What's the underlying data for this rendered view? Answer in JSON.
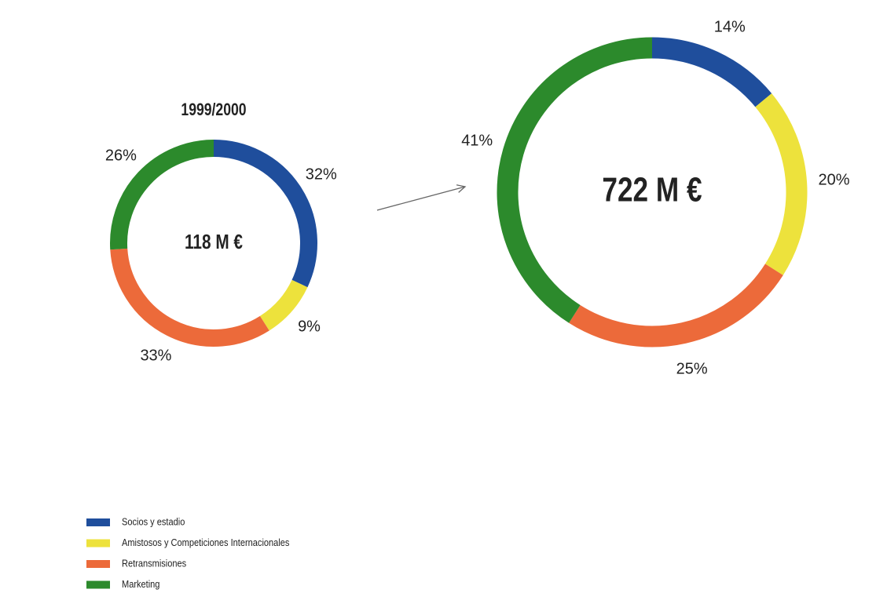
{
  "chart_data": [
    {
      "type": "donut",
      "title": "1999/2000",
      "center_label": "118 M €",
      "categories": [
        "Socios y estadio",
        "Amistosos y Competiciones Internacionales",
        "Retransmisiones",
        "Marketing"
      ],
      "colors": [
        "#1f4e9c",
        "#ede23c",
        "#ec6a3a",
        "#2c8a2c"
      ],
      "values": [
        32,
        9,
        33,
        26
      ],
      "value_labels": [
        "32%",
        "9%",
        "33%",
        "26%"
      ]
    },
    {
      "type": "donut",
      "center_label": "722 M €",
      "values": [
        14,
        20,
        25,
        41
      ],
      "value_labels": [
        "14%",
        "20%",
        "25%",
        "41%"
      ]
    }
  ]
}
